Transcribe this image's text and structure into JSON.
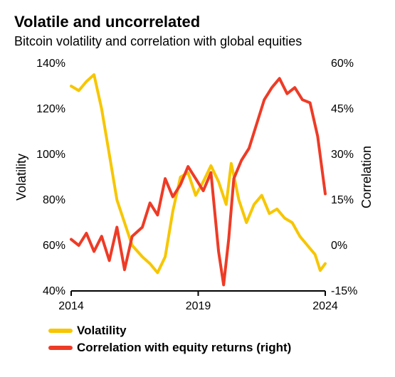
{
  "title": "Volatile and uncorrelated",
  "subtitle": "Bitcoin volatility and correlation with global equities",
  "chart": {
    "type": "line",
    "background_color": "#ffffff",
    "axis_color": "#000000",
    "axis_width": 2,
    "x": {
      "min": 2014,
      "max": 2024,
      "ticks": [
        2014,
        2019,
        2024
      ],
      "tick_labels": [
        "2014",
        "2019",
        "2024"
      ]
    },
    "y_left": {
      "title": "Volatility",
      "min": 40,
      "max": 140,
      "ticks": [
        40,
        60,
        80,
        100,
        120,
        140
      ],
      "tick_labels": [
        "40%",
        "60%",
        "80%",
        "100%",
        "120%",
        "140%"
      ],
      "title_fontsize": 18,
      "label_fontsize": 16
    },
    "y_right": {
      "title": "Correlation",
      "min": -15,
      "max": 60,
      "ticks": [
        -15,
        0,
        15,
        30,
        45,
        60
      ],
      "tick_labels": [
        "-15%",
        "0%",
        "15%",
        "30%",
        "45%",
        "60%"
      ],
      "title_fontsize": 18,
      "label_fontsize": 16
    },
    "series": [
      {
        "name": "Volatility",
        "axis": "left",
        "color": "#f7c600",
        "line_width": 4,
        "data": [
          {
            "x": 2014.0,
            "y": 130
          },
          {
            "x": 2014.3,
            "y": 128
          },
          {
            "x": 2014.6,
            "y": 132
          },
          {
            "x": 2014.9,
            "y": 135
          },
          {
            "x": 2015.2,
            "y": 120
          },
          {
            "x": 2015.5,
            "y": 100
          },
          {
            "x": 2015.8,
            "y": 80
          },
          {
            "x": 2016.1,
            "y": 70
          },
          {
            "x": 2016.4,
            "y": 60
          },
          {
            "x": 2016.8,
            "y": 55
          },
          {
            "x": 2017.1,
            "y": 52
          },
          {
            "x": 2017.4,
            "y": 48
          },
          {
            "x": 2017.7,
            "y": 55
          },
          {
            "x": 2018.0,
            "y": 75
          },
          {
            "x": 2018.3,
            "y": 90
          },
          {
            "x": 2018.6,
            "y": 92
          },
          {
            "x": 2018.9,
            "y": 82
          },
          {
            "x": 2019.2,
            "y": 88
          },
          {
            "x": 2019.5,
            "y": 95
          },
          {
            "x": 2019.8,
            "y": 88
          },
          {
            "x": 2020.1,
            "y": 78
          },
          {
            "x": 2020.3,
            "y": 96
          },
          {
            "x": 2020.6,
            "y": 80
          },
          {
            "x": 2020.9,
            "y": 70
          },
          {
            "x": 2021.2,
            "y": 78
          },
          {
            "x": 2021.5,
            "y": 82
          },
          {
            "x": 2021.8,
            "y": 74
          },
          {
            "x": 2022.1,
            "y": 76
          },
          {
            "x": 2022.4,
            "y": 72
          },
          {
            "x": 2022.7,
            "y": 70
          },
          {
            "x": 2023.0,
            "y": 64
          },
          {
            "x": 2023.3,
            "y": 60
          },
          {
            "x": 2023.6,
            "y": 56
          },
          {
            "x": 2023.8,
            "y": 49
          },
          {
            "x": 2024.0,
            "y": 52
          }
        ]
      },
      {
        "name": "Correlation with equity returns (right)",
        "axis": "right",
        "color": "#ee3b26",
        "line_width": 4,
        "data": [
          {
            "x": 2014.0,
            "y": 2
          },
          {
            "x": 2014.3,
            "y": 0
          },
          {
            "x": 2014.6,
            "y": 4
          },
          {
            "x": 2014.9,
            "y": -2
          },
          {
            "x": 2015.2,
            "y": 3
          },
          {
            "x": 2015.5,
            "y": -5
          },
          {
            "x": 2015.8,
            "y": 6
          },
          {
            "x": 2016.1,
            "y": -8
          },
          {
            "x": 2016.4,
            "y": 3
          },
          {
            "x": 2016.8,
            "y": 6
          },
          {
            "x": 2017.1,
            "y": 14
          },
          {
            "x": 2017.4,
            "y": 10
          },
          {
            "x": 2017.7,
            "y": 22
          },
          {
            "x": 2018.0,
            "y": 16
          },
          {
            "x": 2018.3,
            "y": 20
          },
          {
            "x": 2018.6,
            "y": 26
          },
          {
            "x": 2018.9,
            "y": 22
          },
          {
            "x": 2019.2,
            "y": 18
          },
          {
            "x": 2019.5,
            "y": 24
          },
          {
            "x": 2019.8,
            "y": -2
          },
          {
            "x": 2020.0,
            "y": -13
          },
          {
            "x": 2020.2,
            "y": 2
          },
          {
            "x": 2020.4,
            "y": 22
          },
          {
            "x": 2020.7,
            "y": 28
          },
          {
            "x": 2021.0,
            "y": 32
          },
          {
            "x": 2021.3,
            "y": 40
          },
          {
            "x": 2021.6,
            "y": 48
          },
          {
            "x": 2021.9,
            "y": 52
          },
          {
            "x": 2022.2,
            "y": 55
          },
          {
            "x": 2022.5,
            "y": 50
          },
          {
            "x": 2022.8,
            "y": 52
          },
          {
            "x": 2023.1,
            "y": 48
          },
          {
            "x": 2023.4,
            "y": 47
          },
          {
            "x": 2023.7,
            "y": 36
          },
          {
            "x": 2024.0,
            "y": 17
          }
        ]
      }
    ]
  },
  "legend": {
    "items": [
      {
        "label": "Volatility",
        "color": "#f7c600"
      },
      {
        "label": "Correlation with equity returns (right)",
        "color": "#ee3b26"
      }
    ],
    "fontsize": 17,
    "fontweight": 700
  }
}
